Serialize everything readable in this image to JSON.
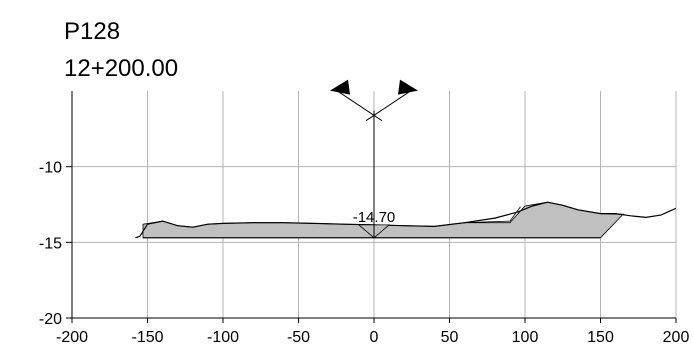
{
  "chart_data": {
    "type": "area",
    "title": "P128",
    "subtitle": "12+200.00",
    "xlabel": "",
    "ylabel": "",
    "xlim": [
      -200,
      200
    ],
    "ylim": [
      -20,
      -5
    ],
    "grid": true,
    "xticks": [
      -200,
      -150,
      -100,
      -50,
      0,
      50,
      100,
      150,
      200
    ],
    "xtick_labels": [
      "-200",
      "-150",
      "-100",
      "-50",
      "0",
      "50",
      "100",
      "150",
      "200"
    ],
    "yticks": [
      -10,
      -15,
      -20
    ],
    "ytick_labels": [
      "-10",
      "-15",
      "-20"
    ],
    "ground_line": [
      [
        -158,
        -14.7
      ],
      [
        -155,
        -14.6
      ],
      [
        -150,
        -13.8
      ],
      [
        -140,
        -13.6
      ],
      [
        -130,
        -13.9
      ],
      [
        -120,
        -14.0
      ],
      [
        -110,
        -13.8
      ],
      [
        -100,
        -13.75
      ],
      [
        -80,
        -13.7
      ],
      [
        -60,
        -13.7
      ],
      [
        -40,
        -13.75
      ],
      [
        -20,
        -13.8
      ],
      [
        0,
        -13.85
      ],
      [
        20,
        -13.9
      ],
      [
        40,
        -13.95
      ],
      [
        60,
        -13.7
      ],
      [
        80,
        -13.4
      ],
      [
        95,
        -13.0
      ],
      [
        105,
        -12.6
      ],
      [
        115,
        -12.35
      ],
      [
        125,
        -12.55
      ],
      [
        135,
        -12.85
      ],
      [
        150,
        -13.1
      ],
      [
        160,
        -13.1
      ],
      [
        170,
        -13.25
      ],
      [
        180,
        -13.35
      ],
      [
        190,
        -13.2
      ],
      [
        200,
        -12.75
      ]
    ],
    "design_section": [
      [
        -153,
        -14.7
      ],
      [
        -153,
        -13.8
      ],
      [
        -140,
        -13.6
      ],
      [
        -130,
        -13.9
      ],
      [
        -120,
        -14.0
      ],
      [
        -110,
        -13.8
      ],
      [
        -100,
        -13.75
      ],
      [
        -80,
        -13.7
      ],
      [
        -60,
        -13.7
      ],
      [
        -40,
        -13.75
      ],
      [
        -20,
        -13.8
      ],
      [
        0,
        -13.85
      ],
      [
        20,
        -13.9
      ],
      [
        40,
        -13.95
      ],
      [
        60,
        -13.7
      ],
      [
        90,
        -13.7
      ],
      [
        100,
        -12.6
      ],
      [
        115,
        -12.35
      ],
      [
        125,
        -12.55
      ],
      [
        135,
        -12.85
      ],
      [
        150,
        -13.1
      ],
      [
        165,
        -13.15
      ],
      [
        150,
        -14.7
      ]
    ],
    "design_top_line": [
      [
        60,
        -13.7
      ],
      [
        90,
        -13.6
      ],
      [
        97,
        -12.65
      ]
    ],
    "design_bottom": [
      [
        -153,
        -14.7
      ],
      [
        150,
        -14.7
      ]
    ],
    "centerline": {
      "x": 0,
      "y_top": -6.3,
      "y_bottom": -14.7
    },
    "marker_triangle": [
      [
        -10,
        -13.85
      ],
      [
        0,
        -14.7
      ],
      [
        10,
        -13.85
      ]
    ],
    "annotations": [
      {
        "text": "-14.70",
        "x": 0,
        "y": -13.85
      }
    ],
    "fill_color": "#c0c0c0",
    "grid_color": "#b4b4b4"
  }
}
